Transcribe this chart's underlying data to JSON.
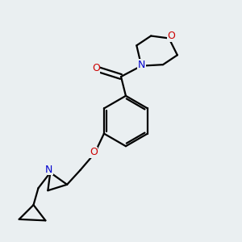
{
  "bg_color": "#eaeff1",
  "bond_color": "#000000",
  "N_color": "#0000cc",
  "O_color": "#cc0000",
  "line_width": 1.6,
  "figsize": [
    3.0,
    3.0
  ],
  "dpi": 100,
  "xlim": [
    0,
    10
  ],
  "ylim": [
    0,
    10
  ]
}
